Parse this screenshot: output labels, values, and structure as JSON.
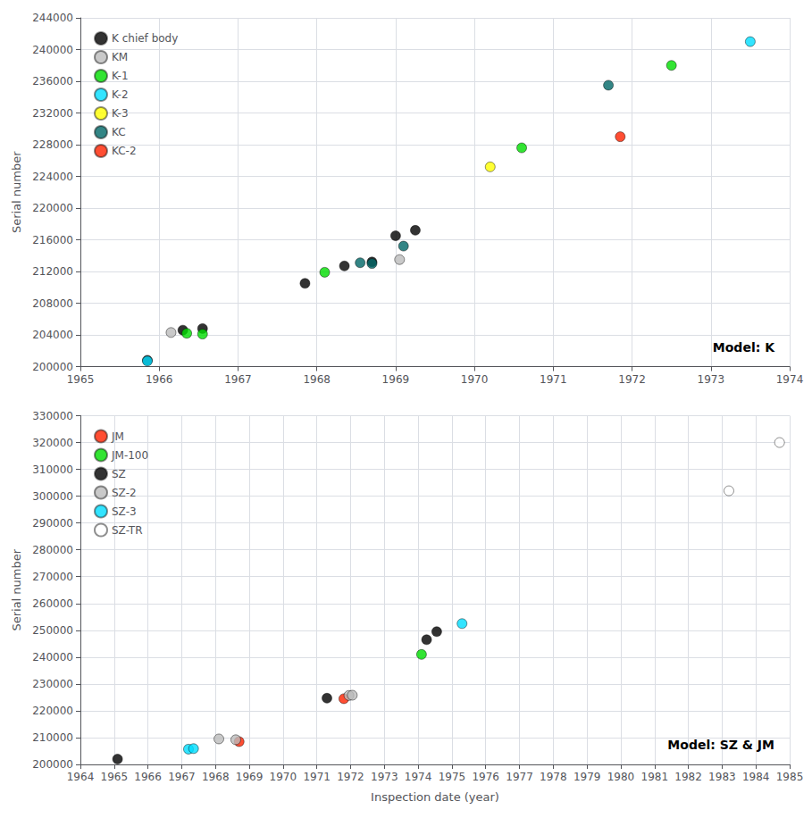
{
  "chart_data": [
    {
      "type": "scatter",
      "title": "Model: K",
      "ylabel": "Serial number",
      "series": [
        {
          "name": "K chief body",
          "color": "#000000",
          "x": [
            1965.85,
            1966.3,
            1966.55,
            1967.85,
            1968.35,
            1968.7,
            1969.0,
            1969.25
          ],
          "values": [
            200800,
            204600,
            204800,
            210500,
            212700,
            213200,
            216500,
            217200
          ]
        },
        {
          "name": "KM",
          "color": "#bbbbbb",
          "x": [
            1966.15,
            1969.05
          ],
          "values": [
            204300,
            213500
          ]
        },
        {
          "name": "K-1",
          "color": "#00dd00",
          "x": [
            1966.35,
            1966.55,
            1968.1,
            1970.6,
            1972.5
          ],
          "values": [
            204200,
            204100,
            211900,
            227600,
            238000
          ]
        },
        {
          "name": "K-2",
          "color": "#00ddff",
          "x": [
            1965.85,
            1973.5
          ],
          "values": [
            200700,
            241000
          ]
        },
        {
          "name": "K-3",
          "color": "#ffff00",
          "x": [
            1970.2
          ],
          "values": [
            225200
          ]
        },
        {
          "name": "KC",
          "color": "#006666",
          "x": [
            1968.55,
            1968.7,
            1969.1,
            1971.7
          ],
          "values": [
            213100,
            213000,
            215200,
            235500
          ]
        },
        {
          "name": "KC-2",
          "color": "#ff2200",
          "x": [
            1971.85
          ],
          "values": [
            229000
          ]
        }
      ],
      "xlim": [
        1965,
        1974
      ],
      "ylim": [
        200000,
        244000
      ],
      "xticks": [
        1965,
        1966,
        1967,
        1968,
        1969,
        1970,
        1971,
        1972,
        1973,
        1974
      ],
      "yticks": [
        200000,
        204000,
        208000,
        212000,
        216000,
        220000,
        224000,
        228000,
        232000,
        236000,
        240000,
        244000
      ],
      "grid": true,
      "legend": "upper left"
    },
    {
      "type": "scatter",
      "title": "Model: SZ & JM",
      "xlabel": "Inspection date (year)",
      "ylabel": "Serial number",
      "series": [
        {
          "name": "JM",
          "color": "#ff2200",
          "x": [
            1968.7,
            1971.8
          ],
          "values": [
            208500,
            224500
          ]
        },
        {
          "name": "JM-100",
          "color": "#00dd00",
          "x": [
            1974.1
          ],
          "values": [
            241000
          ]
        },
        {
          "name": "SZ",
          "color": "#000000",
          "x": [
            1965.1,
            1971.3,
            1974.25,
            1974.55
          ],
          "values": [
            202000,
            224700,
            246500,
            249500
          ]
        },
        {
          "name": "SZ-2",
          "color": "#bbbbbb",
          "x": [
            1968.1,
            1968.6,
            1971.95,
            1972.05
          ],
          "values": [
            209500,
            209200,
            225700,
            225800
          ]
        },
        {
          "name": "SZ-3",
          "color": "#00ddff",
          "x": [
            1967.2,
            1967.35,
            1975.3
          ],
          "values": [
            205700,
            205900,
            252500
          ]
        },
        {
          "name": "SZ-TR",
          "color": "#ffffff",
          "x": [
            1983.2,
            1984.7
          ],
          "values": [
            302000,
            320000
          ]
        }
      ],
      "xlim": [
        1964,
        1985
      ],
      "ylim": [
        200000,
        330000
      ],
      "xticks": [
        1964,
        1965,
        1966,
        1967,
        1968,
        1969,
        1970,
        1971,
        1972,
        1973,
        1974,
        1975,
        1976,
        1977,
        1978,
        1979,
        1980,
        1981,
        1982,
        1983,
        1984,
        1985
      ],
      "yticks": [
        200000,
        210000,
        220000,
        230000,
        240000,
        250000,
        260000,
        270000,
        280000,
        290000,
        300000,
        310000,
        320000,
        330000
      ],
      "grid": true,
      "legend": "upper left"
    }
  ]
}
